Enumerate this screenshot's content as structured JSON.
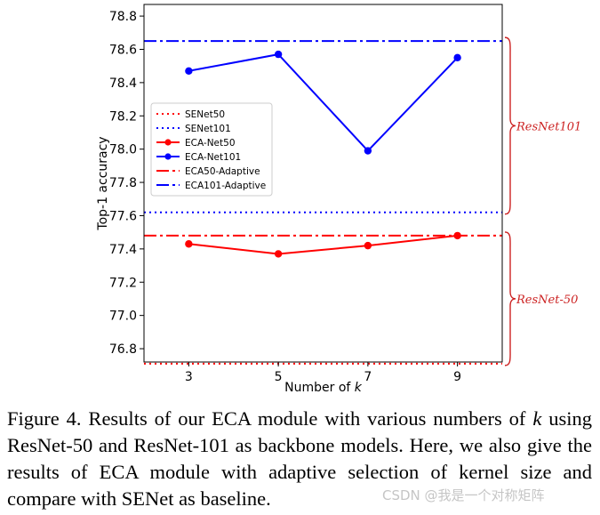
{
  "chart_data": {
    "type": "line",
    "ylabel": "Top-1 accuracy",
    "xlabel": "Number of",
    "xlabel_var": "k",
    "x": [
      3,
      5,
      7,
      9
    ],
    "xticks": [
      "3",
      "5",
      "7",
      "9"
    ],
    "xlim": [
      2,
      10
    ],
    "ylim": [
      76.72,
      78.87
    ],
    "yticks": [
      "76.8",
      "77.0",
      "77.2",
      "77.4",
      "77.6",
      "77.8",
      "78.0",
      "78.2",
      "78.4",
      "78.6",
      "78.8"
    ],
    "series": [
      {
        "name": "SENet50",
        "style": "dotted",
        "value": 76.71,
        "color": "#ff0000"
      },
      {
        "name": "SENet101",
        "style": "dotted",
        "value": 77.62,
        "color": "#0000ff"
      },
      {
        "name": "ECA-Net50",
        "style": "solid-marker",
        "values": [
          77.43,
          77.37,
          77.42,
          77.48
        ],
        "color": "#ff0000"
      },
      {
        "name": "ECA-Net101",
        "style": "solid-marker",
        "values": [
          78.47,
          78.57,
          77.99,
          78.55
        ],
        "color": "#0000ff"
      },
      {
        "name": "ECA50-Adaptive",
        "style": "dashdot",
        "value": 77.48,
        "color": "#ff0000"
      },
      {
        "name": "ECA101-Adaptive",
        "style": "dashdot",
        "value": 78.65,
        "color": "#0000ff"
      }
    ],
    "legend_position": "middle-left",
    "annotations": [
      {
        "text": "ResNet101",
        "range": [
          77.62,
          78.65
        ],
        "color": "#cc2222"
      },
      {
        "text": "ResNet-50",
        "range": [
          76.71,
          77.48
        ],
        "color": "#cc2222"
      }
    ]
  },
  "caption": {
    "prefix": "Figure 4. Results of our ECA module with various numbers of ",
    "var": "k",
    "suffix": " using ResNet-50 and ResNet-101 as backbone models. Here, we also give the results of ECA module with adaptive selection of kernel size and compare with SENet as baseline."
  },
  "watermark": "CSDN @我是一个对称矩阵"
}
